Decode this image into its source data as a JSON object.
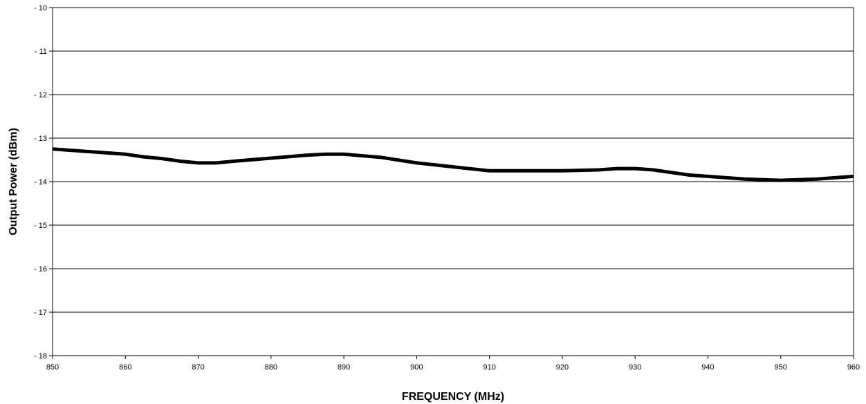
{
  "chart_data": {
    "type": "line",
    "title": "",
    "xlabel": "FREQUENCY (MHz)",
    "ylabel": "Output Power (dBm)",
    "xlim": [
      850,
      960
    ],
    "ylim": [
      -18,
      -10
    ],
    "x_ticks": [
      850,
      860,
      870,
      880,
      890,
      900,
      910,
      920,
      930,
      940,
      950,
      960
    ],
    "y_ticks": [
      -10,
      -11,
      -12,
      -13,
      -14,
      -15,
      -16,
      -17,
      -18
    ],
    "y_tick_labels": [
      "- 10",
      "- 11",
      "- 12",
      "- 13",
      "- 14",
      "- 15",
      "- 16",
      "- 17",
      "- 18"
    ],
    "grid": {
      "horizontal": true,
      "vertical": false
    },
    "legend": "none",
    "line_color": "#000000",
    "series": [
      {
        "x": [
          850,
          855,
          860,
          862.5,
          865,
          867.5,
          870,
          872.5,
          875,
          880,
          885,
          887.5,
          890,
          895,
          900,
          905,
          910,
          915,
          920,
          925,
          927.5,
          930,
          932.5,
          935,
          937.5,
          940,
          945,
          950,
          955,
          960
        ],
        "values": [
          -13.25,
          -13.31,
          -13.37,
          -13.43,
          -13.47,
          -13.53,
          -13.57,
          -13.57,
          -13.53,
          -13.46,
          -13.39,
          -13.37,
          -13.37,
          -13.44,
          -13.57,
          -13.66,
          -13.75,
          -13.75,
          -13.75,
          -13.73,
          -13.7,
          -13.7,
          -13.73,
          -13.79,
          -13.85,
          -13.88,
          -13.94,
          -13.97,
          -13.94,
          -13.88
        ]
      }
    ]
  }
}
